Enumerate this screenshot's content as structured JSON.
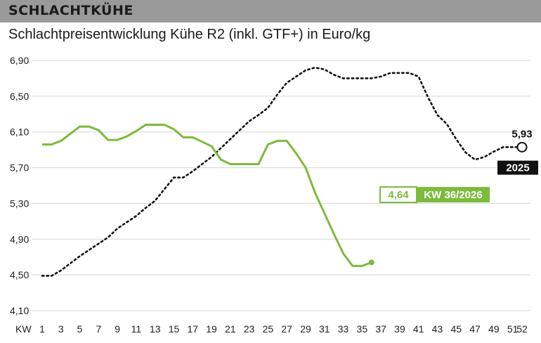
{
  "header": {
    "title": "SCHLACHTKÜHE"
  },
  "subtitle": "Schlachtpreisentwicklung Kühe R2 (inkl. GTF+) in Euro/kg",
  "colors": {
    "current": "#7cbb3c",
    "previous": "#111111",
    "header_bg": "#9a9a9a"
  },
  "chart_data": {
    "type": "line",
    "title": "Schlachtpreisentwicklung Kühe R2 (inkl. GTF+) in Euro/kg",
    "xlabel": "KW",
    "ylabel": "",
    "xlim": [
      0,
      52
    ],
    "ylim": [
      4.1,
      6.9
    ],
    "x_ticks": [
      1,
      3,
      5,
      7,
      9,
      11,
      13,
      15,
      17,
      19,
      21,
      23,
      25,
      27,
      29,
      31,
      33,
      35,
      37,
      39,
      41,
      43,
      45,
      47,
      49,
      51,
      52
    ],
    "y_ticks": [
      "6,90",
      "6,50",
      "6,10",
      "5,70",
      "5,30",
      "4,90",
      "4,50",
      "4,10"
    ],
    "y_tick_values": [
      6.9,
      6.5,
      6.1,
      5.7,
      5.3,
      4.9,
      4.5,
      4.1
    ],
    "grid": true,
    "series": [
      {
        "name": "2025",
        "style": "dotted",
        "x": [
          1,
          2,
          3,
          4,
          5,
          6,
          7,
          8,
          9,
          10,
          11,
          12,
          13,
          14,
          15,
          16,
          17,
          18,
          19,
          20,
          21,
          22,
          23,
          24,
          25,
          26,
          27,
          28,
          29,
          30,
          31,
          32,
          33,
          34,
          35,
          36,
          37,
          38,
          39,
          40,
          41,
          42,
          43,
          44,
          45,
          46,
          47,
          48,
          49,
          50,
          51,
          52
        ],
        "values": [
          4.49,
          4.49,
          4.55,
          4.63,
          4.71,
          4.78,
          4.85,
          4.92,
          5.02,
          5.09,
          5.16,
          5.25,
          5.33,
          5.46,
          5.59,
          5.59,
          5.66,
          5.74,
          5.82,
          5.92,
          6.02,
          6.12,
          6.22,
          6.29,
          6.37,
          6.52,
          6.65,
          6.72,
          6.79,
          6.82,
          6.8,
          6.74,
          6.7,
          6.7,
          6.7,
          6.7,
          6.72,
          6.76,
          6.76,
          6.76,
          6.72,
          6.49,
          6.29,
          6.19,
          6.02,
          5.87,
          5.79,
          5.82,
          5.88,
          5.93,
          5.93,
          5.93
        ]
      },
      {
        "name": "2026",
        "style": "solid",
        "x": [
          1,
          2,
          3,
          4,
          5,
          6,
          7,
          8,
          9,
          10,
          11,
          12,
          13,
          14,
          15,
          16,
          17,
          18,
          19,
          20,
          21,
          22,
          23,
          24,
          25,
          26,
          27,
          28,
          29,
          30,
          31,
          32,
          33,
          34,
          35,
          36
        ],
        "values": [
          5.96,
          5.96,
          6.0,
          6.08,
          6.16,
          6.16,
          6.12,
          6.01,
          6.01,
          6.05,
          6.11,
          6.18,
          6.18,
          6.18,
          6.13,
          6.04,
          6.04,
          5.99,
          5.94,
          5.79,
          5.74,
          5.74,
          5.74,
          5.74,
          5.96,
          6.0,
          6.0,
          5.86,
          5.7,
          5.42,
          5.19,
          4.96,
          4.74,
          4.6,
          4.6,
          4.64
        ]
      }
    ],
    "annotations": [
      {
        "label": "5,93",
        "series": "2025"
      },
      {
        "label": "2025",
        "series": "2025"
      },
      {
        "label": "4,64",
        "series": "2026"
      },
      {
        "label": "KW 36/2026",
        "series": "2026"
      }
    ]
  }
}
